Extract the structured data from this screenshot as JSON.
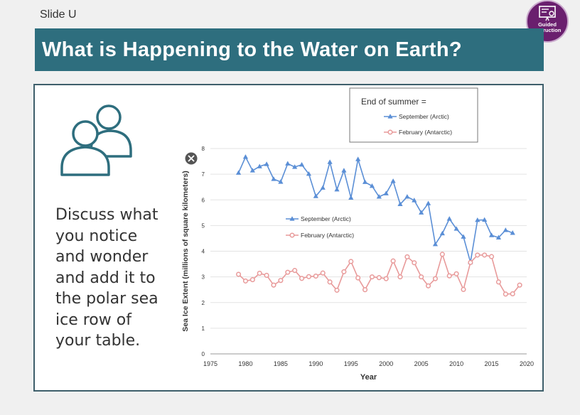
{
  "slide": {
    "label": "Slide U",
    "title": "What is Happening to the Water on Earth?",
    "badge": {
      "line1": "Guided",
      "line2": "Instruction",
      "color": "#6a1f6e"
    },
    "prompt": "Discuss what you notice and wonder and add it to the polar sea ice row of your table.",
    "accent_color": "#2e6e7e"
  },
  "chart_data": {
    "type": "line",
    "title": "",
    "xlabel": "Year",
    "ylabel": "Sea Ice Extent (millions of square kilometers)",
    "xlim": [
      1975,
      2020
    ],
    "ylim": [
      0,
      8
    ],
    "xticks": [
      "1975",
      "1980",
      "1985",
      "1990",
      "1995",
      "2000",
      "2005",
      "2010",
      "2015",
      "2020"
    ],
    "yticks": [
      "0",
      "1",
      "2",
      "3",
      "4",
      "5",
      "6",
      "7",
      "8"
    ],
    "legend_title": "End of summer =",
    "series": [
      {
        "name": "September (Arctic)",
        "color": "#5b8fd6",
        "marker": "triangle",
        "x": [
          1979,
          1980,
          1981,
          1982,
          1983,
          1984,
          1985,
          1986,
          1987,
          1988,
          1989,
          1990,
          1991,
          1992,
          1993,
          1994,
          1995,
          1996,
          1997,
          1998,
          1999,
          2000,
          2001,
          2002,
          2003,
          2004,
          2005,
          2006,
          2007,
          2008,
          2009,
          2010,
          2011,
          2012,
          2013,
          2014,
          2015,
          2016,
          2017,
          2018
        ],
        "values": [
          7.05,
          7.67,
          7.14,
          7.3,
          7.39,
          6.81,
          6.7,
          7.41,
          7.28,
          7.37,
          7.01,
          6.14,
          6.47,
          7.47,
          6.4,
          7.14,
          6.08,
          7.58,
          6.69,
          6.54,
          6.12,
          6.25,
          6.73,
          5.83,
          6.12,
          5.98,
          5.5,
          5.86,
          4.27,
          4.69,
          5.26,
          4.87,
          4.56,
          3.57,
          5.21,
          5.22,
          4.62,
          4.53,
          4.82,
          4.71
        ]
      },
      {
        "name": "February (Antarctic)",
        "color": "#e89a9a",
        "marker": "circle",
        "x": [
          1979,
          1980,
          1981,
          1982,
          1983,
          1984,
          1985,
          1986,
          1987,
          1988,
          1989,
          1990,
          1991,
          1992,
          1993,
          1994,
          1995,
          1996,
          1997,
          1998,
          1999,
          2000,
          2001,
          2002,
          2003,
          2004,
          2005,
          2006,
          2007,
          2008,
          2009,
          2010,
          2011,
          2012,
          2013,
          2014,
          2015,
          2016,
          2017,
          2018,
          2019
        ],
        "values": [
          3.1,
          2.84,
          2.89,
          3.14,
          3.06,
          2.68,
          2.86,
          3.18,
          3.25,
          2.94,
          3.01,
          3.03,
          3.15,
          2.8,
          2.48,
          3.2,
          3.6,
          2.96,
          2.5,
          3.0,
          2.97,
          2.93,
          3.62,
          3.0,
          3.78,
          3.55,
          3.0,
          2.65,
          2.93,
          3.88,
          3.04,
          3.12,
          2.51,
          3.56,
          3.85,
          3.85,
          3.79,
          2.8,
          2.33,
          2.34,
          2.68
        ]
      }
    ]
  }
}
